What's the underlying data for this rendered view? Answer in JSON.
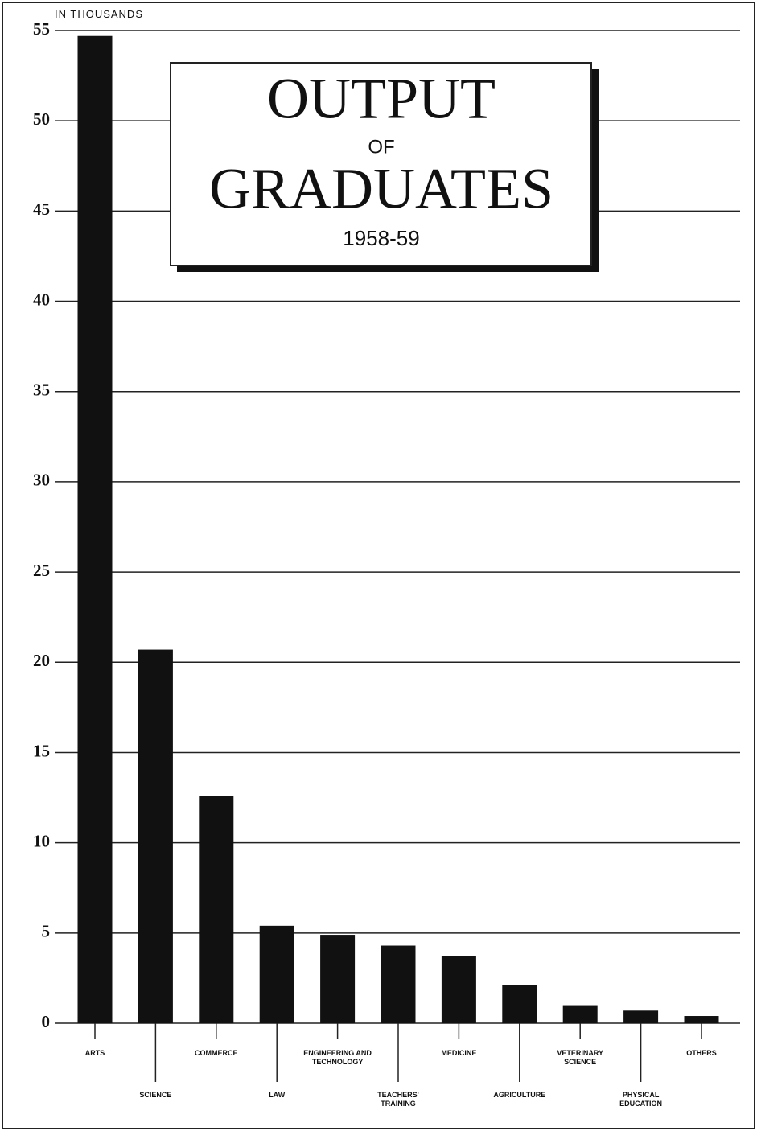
{
  "chart_data": {
    "type": "bar",
    "title": [
      "OUTPUT",
      "OF",
      "GRADUATES"
    ],
    "subtitle": "1958-59",
    "y_label": "IN THOUSANDS",
    "categories": [
      "ARTS",
      "SCIENCE",
      "COMMERCE",
      "LAW",
      "ENGINEERING AND TECHNOLOGY",
      "TEACHERS' TRAINING",
      "MEDICINE",
      "AGRICULTURE",
      "VETERINARY SCIENCE",
      "PHYSICAL EDUCATION",
      "OTHERS"
    ],
    "values": [
      54.7,
      20.7,
      12.6,
      5.4,
      4.9,
      4.3,
      3.7,
      2.1,
      1.0,
      0.7,
      0.4
    ],
    "color": "#111111",
    "ylim": [
      0,
      55
    ],
    "yticks": [
      0,
      5,
      10,
      15,
      20,
      25,
      30,
      35,
      40,
      45,
      50,
      55
    ],
    "grid": true
  }
}
